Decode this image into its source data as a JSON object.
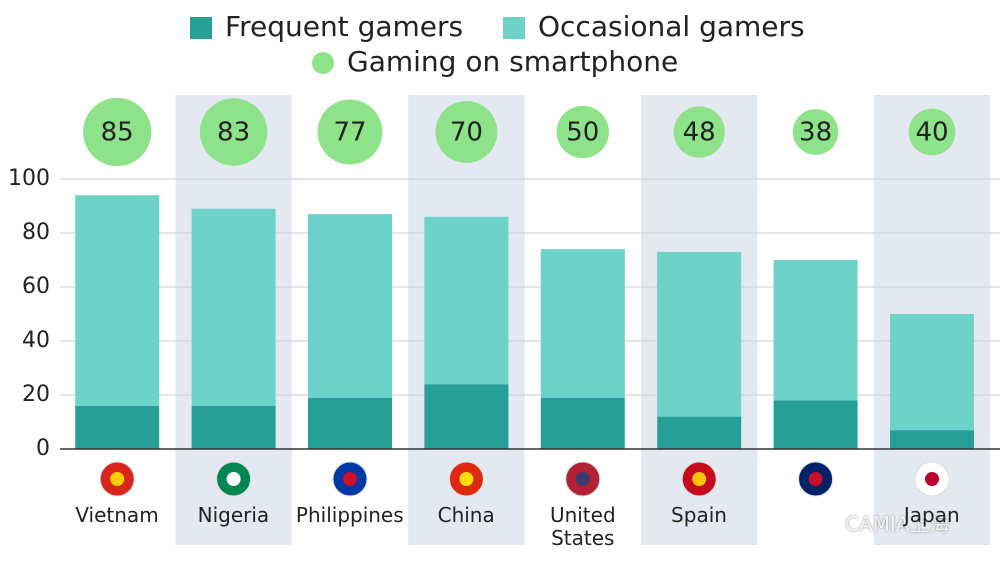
{
  "chart_data": {
    "type": "stacked-bar",
    "categories": [
      "Vietnam",
      "Nigeria",
      "Philippines",
      "China",
      "United States",
      "Spain",
      null,
      "Japan"
    ],
    "series": [
      {
        "name": "Frequent gamers",
        "color": "#26a096",
        "values": [
          16,
          16,
          19,
          24,
          19,
          12,
          18,
          7
        ]
      },
      {
        "name": "Occasional gamers",
        "color": "#6dd3c8",
        "values": [
          78,
          73,
          68,
          62,
          55,
          61,
          52,
          43
        ]
      }
    ],
    "bubbles": {
      "name": "Gaming on smartphone",
      "color": "#8ee38a",
      "values": [
        85,
        83,
        77,
        70,
        50,
        48,
        38,
        40
      ]
    },
    "ylim": [
      0,
      100
    ],
    "yticks": [
      0,
      20,
      40,
      60,
      80,
      100
    ],
    "grid": true,
    "watermark": "CAMIA上海"
  }
}
